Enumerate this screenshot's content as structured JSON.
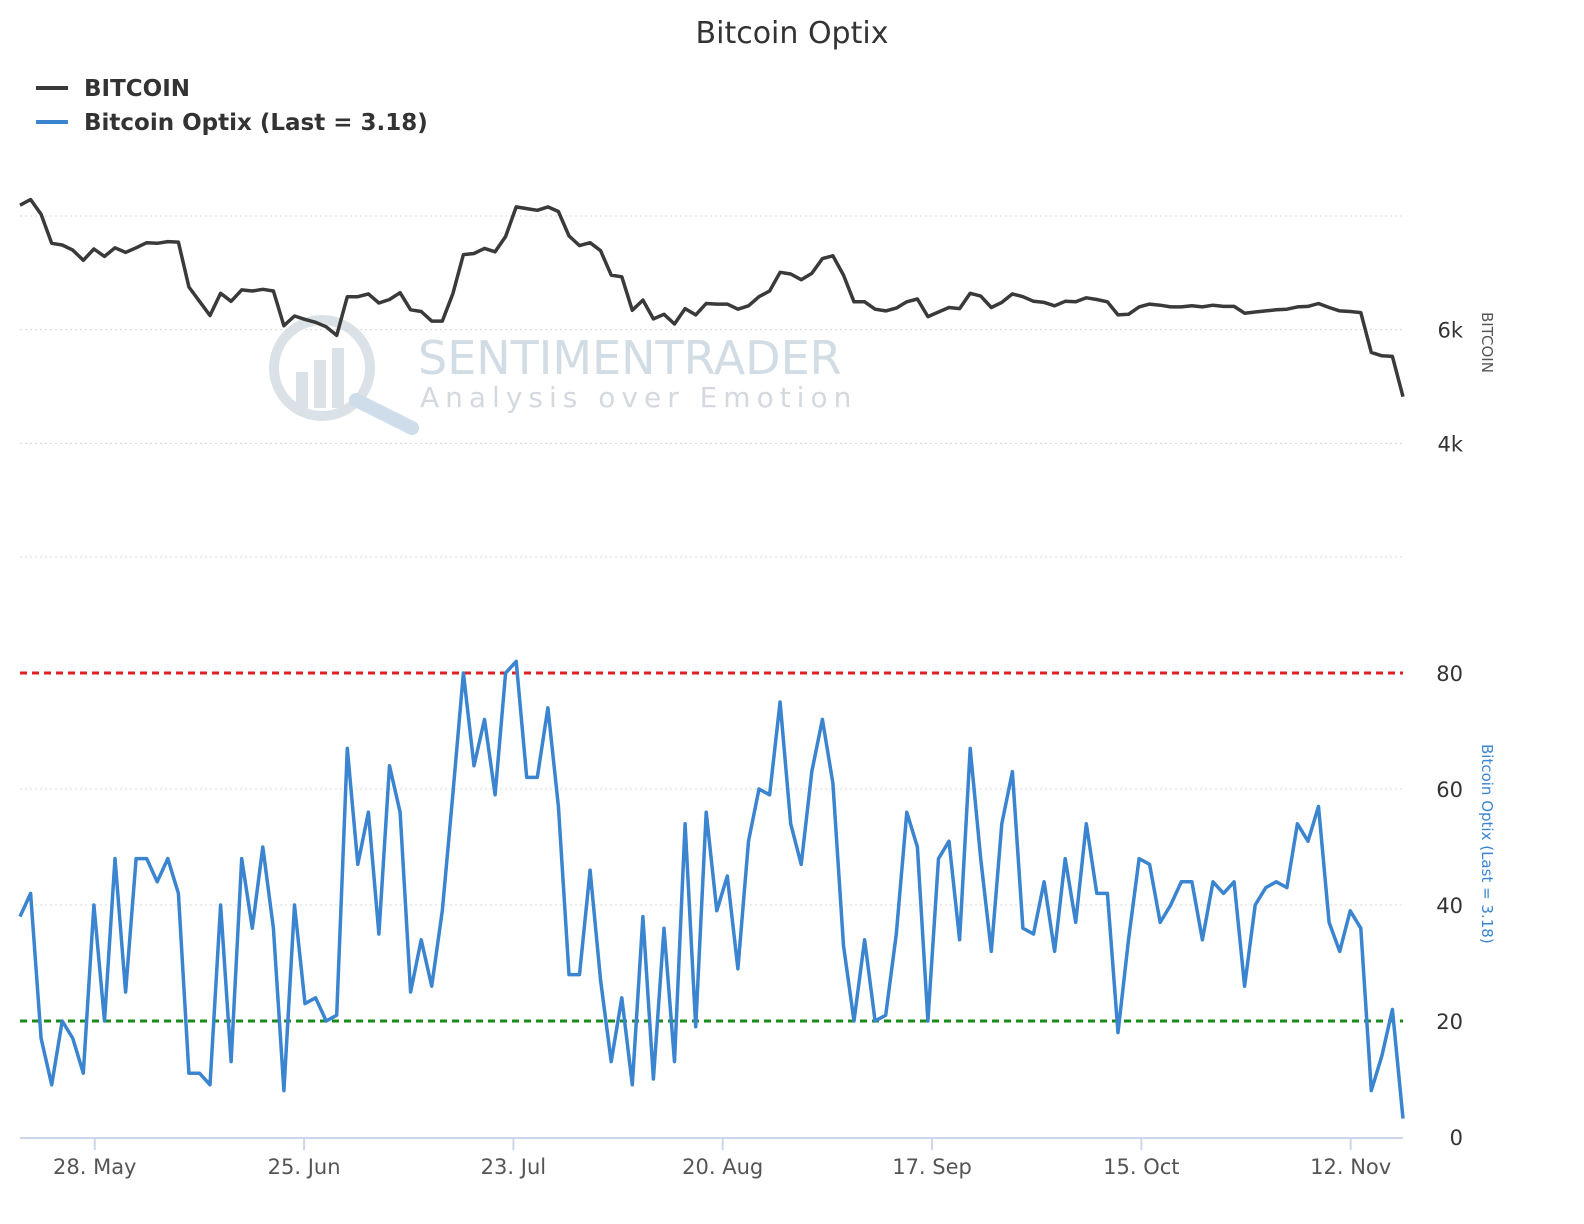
{
  "chart_data": {
    "type": "line",
    "title": "Bitcoin Optix",
    "legend": {
      "placement": "top-left",
      "entries": [
        {
          "name": "BITCOIN",
          "color": "#3a3a3a"
        },
        {
          "name": "Bitcoin Optix (Last = 3.18)",
          "color": "#3a84d0"
        }
      ]
    },
    "watermark": {
      "line1": "SENTIMENTRADER",
      "line2": "Analysis over Emotion"
    },
    "x_axis": {
      "type": "date",
      "start": "2018-05-18",
      "end": "2018-11-19",
      "ticks": [
        {
          "date": "2018-05-28",
          "label": "28. May"
        },
        {
          "date": "2018-06-25",
          "label": "25. Jun"
        },
        {
          "date": "2018-07-23",
          "label": "23. Jul"
        },
        {
          "date": "2018-08-20",
          "label": "20. Aug"
        },
        {
          "date": "2018-09-17",
          "label": "17. Sep"
        },
        {
          "date": "2018-10-15",
          "label": "15. Oct"
        },
        {
          "date": "2018-11-12",
          "label": "12. Nov"
        }
      ]
    },
    "panels": [
      {
        "name": "BITCOIN",
        "axis_title": "BITCOIN",
        "ylim": [
          2000,
          10000
        ],
        "ticks": [
          {
            "value": 4000,
            "label": "4k"
          },
          {
            "value": 6000,
            "label": "6k"
          }
        ],
        "gridlines": [
          2000,
          4000,
          6000,
          8000
        ],
        "grid": true,
        "series": [
          {
            "name": "BITCOIN",
            "color": "#3a3a3a",
            "values": [
              8190,
              8290,
              8030,
              7520,
              7490,
              7400,
              7220,
              7420,
              7290,
              7440,
              7360,
              7440,
              7530,
              7520,
              7550,
              7540,
              6750,
              6500,
              6250,
              6640,
              6500,
              6700,
              6680,
              6710,
              6680,
              6070,
              6240,
              6180,
              6130,
              6050,
              5900,
              6580,
              6580,
              6630,
              6470,
              6530,
              6650,
              6350,
              6320,
              6150,
              6150,
              6630,
              7320,
              7340,
              7430,
              7370,
              7640,
              8160,
              8130,
              8100,
              8160,
              8080,
              7650,
              7480,
              7530,
              7390,
              6960,
              6930,
              6340,
              6520,
              6190,
              6270,
              6100,
              6370,
              6260,
              6460,
              6450,
              6450,
              6360,
              6420,
              6580,
              6680,
              7010,
              6980,
              6880,
              6990,
              7250,
              7300,
              6960,
              6490,
              6490,
              6360,
              6330,
              6380,
              6490,
              6540,
              6230,
              6310,
              6390,
              6370,
              6640,
              6590,
              6390,
              6480,
              6630,
              6580,
              6500,
              6480,
              6420,
              6500,
              6490,
              6560,
              6530,
              6490,
              6260,
              6270,
              6400,
              6450,
              6430,
              6400,
              6400,
              6420,
              6400,
              6430,
              6410,
              6410,
              6290,
              6310,
              6330,
              6350,
              6360,
              6400,
              6410,
              6460,
              6390,
              6330,
              6320,
              6300,
              5600,
              5540,
              5530,
              4820
            ]
          }
        ]
      },
      {
        "name": "Bitcoin Optix (Last = 3.18)",
        "axis_title": "Bitcoin Optix (Last = 3.18)",
        "ylim": [
          0,
          85
        ],
        "ticks": [
          {
            "value": 0,
            "label": "0"
          },
          {
            "value": 20,
            "label": "20"
          },
          {
            "value": 40,
            "label": "40"
          },
          {
            "value": 60,
            "label": "60"
          },
          {
            "value": 80,
            "label": "80"
          }
        ],
        "gridlines": [
          40,
          60
        ],
        "grid": true,
        "reference_lines": [
          {
            "value": 80,
            "color": "#e02020",
            "style": "dashed"
          },
          {
            "value": 20,
            "color": "#1a8a1a",
            "style": "dashed"
          }
        ],
        "series": [
          {
            "name": "Bitcoin Optix (Last = 3.18)",
            "color": "#3a84d0",
            "values": [
              38,
              42,
              17,
              9,
              20,
              17,
              11,
              40,
              20,
              48,
              25,
              48,
              48,
              44,
              48,
              42,
              11,
              11,
              9,
              40,
              13,
              48,
              36,
              50,
              36,
              8,
              40,
              23,
              24,
              20,
              21,
              67,
              47,
              56,
              35,
              64,
              56,
              25,
              34,
              26,
              39,
              59,
              80,
              64,
              72,
              59,
              80,
              82,
              62,
              62,
              74,
              57,
              28,
              28,
              46,
              27,
              13,
              24,
              9,
              38,
              10,
              36,
              13,
              54,
              19,
              56,
              39,
              45,
              29,
              51,
              60,
              59,
              75,
              54,
              47,
              63,
              72,
              61,
              33,
              20,
              34,
              20,
              21,
              35,
              56,
              50,
              20,
              48,
              51,
              34,
              67,
              48,
              32,
              54,
              63,
              36,
              35,
              44,
              32,
              48,
              37,
              54,
              42,
              42,
              18,
              34,
              48,
              47,
              37,
              40,
              44,
              44,
              34,
              44,
              42,
              44,
              26,
              40,
              43,
              44,
              43,
              54,
              51,
              57,
              37,
              32,
              39,
              36,
              8,
              14,
              22,
              3.18
            ]
          }
        ]
      }
    ]
  }
}
